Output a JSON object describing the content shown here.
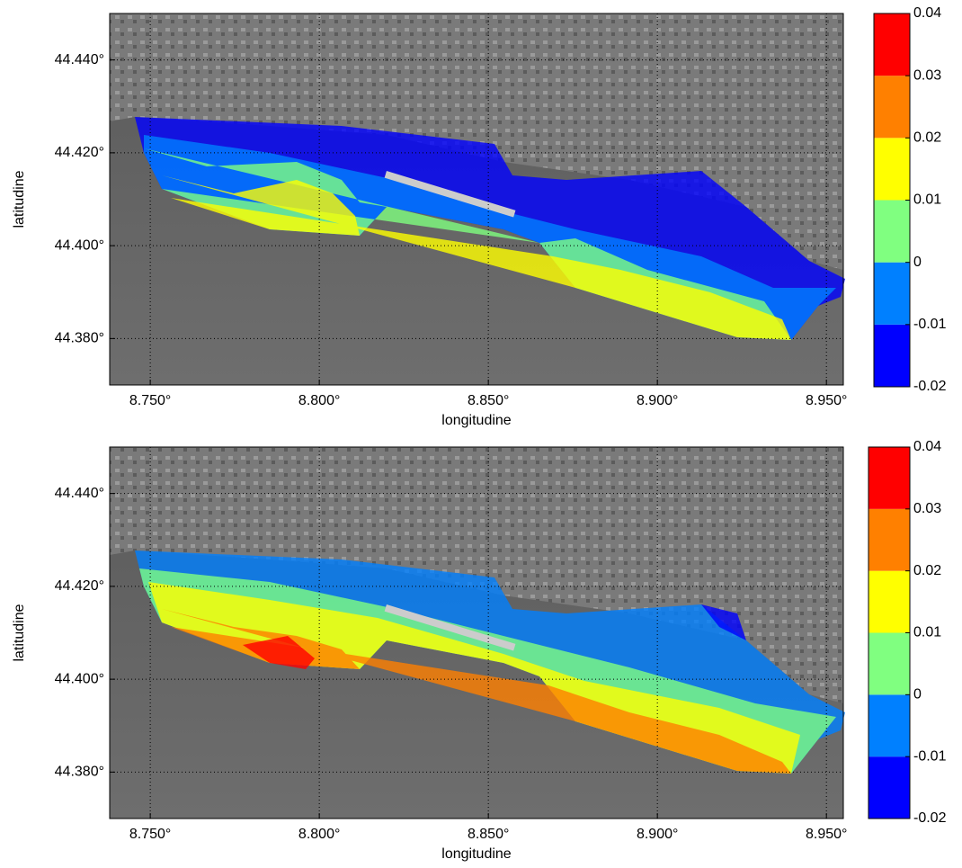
{
  "panels": [
    {
      "xlabel": "longitudine",
      "ylabel": "latitudine",
      "xlim": [
        8.738,
        8.955
      ],
      "ylim": [
        44.37,
        44.45
      ],
      "grid": true,
      "xticks": [
        {
          "value": 8.75,
          "label": "8.750°"
        },
        {
          "value": 8.8,
          "label": "8.800°"
        },
        {
          "value": 8.85,
          "label": "8.850°"
        },
        {
          "value": 8.9,
          "label": "8.900°"
        },
        {
          "value": 8.95,
          "label": "8.950°"
        }
      ],
      "yticks": [
        {
          "value": 44.38,
          "label": "44.380°"
        },
        {
          "value": 44.4,
          "label": "44.400°"
        },
        {
          "value": 44.42,
          "label": "44.420°"
        },
        {
          "value": 44.44,
          "label": "44.440°"
        }
      ],
      "colorbar": {
        "clim": [
          -0.02,
          0.04
        ],
        "ticks": [
          -0.02,
          -0.01,
          0,
          0.01,
          0.02,
          0.03,
          0.04
        ],
        "colors": [
          "#0000ff",
          "#0080ff",
          "#80ff80",
          "#ffff00",
          "#ff8000",
          "#ff0000"
        ]
      }
    },
    {
      "xlabel": "longitudine",
      "ylabel": "latitudine",
      "xlim": [
        8.738,
        8.955
      ],
      "ylim": [
        44.37,
        44.45
      ],
      "grid": true,
      "xticks": [
        {
          "value": 8.75,
          "label": "8.750°"
        },
        {
          "value": 8.8,
          "label": "8.800°"
        },
        {
          "value": 8.85,
          "label": "8.850°"
        },
        {
          "value": 8.9,
          "label": "8.900°"
        },
        {
          "value": 8.95,
          "label": "8.950°"
        }
      ],
      "yticks": [
        {
          "value": 44.38,
          "label": "44.380°"
        },
        {
          "value": 44.4,
          "label": "44.400°"
        },
        {
          "value": 44.42,
          "label": "44.420°"
        },
        {
          "value": 44.44,
          "label": "44.440°"
        }
      ],
      "colorbar": {
        "clim": [
          -0.02,
          0.04
        ],
        "ticks": [
          -0.02,
          -0.01,
          0,
          0.01,
          0.02,
          0.03,
          0.04
        ],
        "colors": [
          "#0000ff",
          "#0080ff",
          "#80ff80",
          "#ffff00",
          "#ff8000",
          "#ff0000"
        ]
      }
    }
  ]
}
